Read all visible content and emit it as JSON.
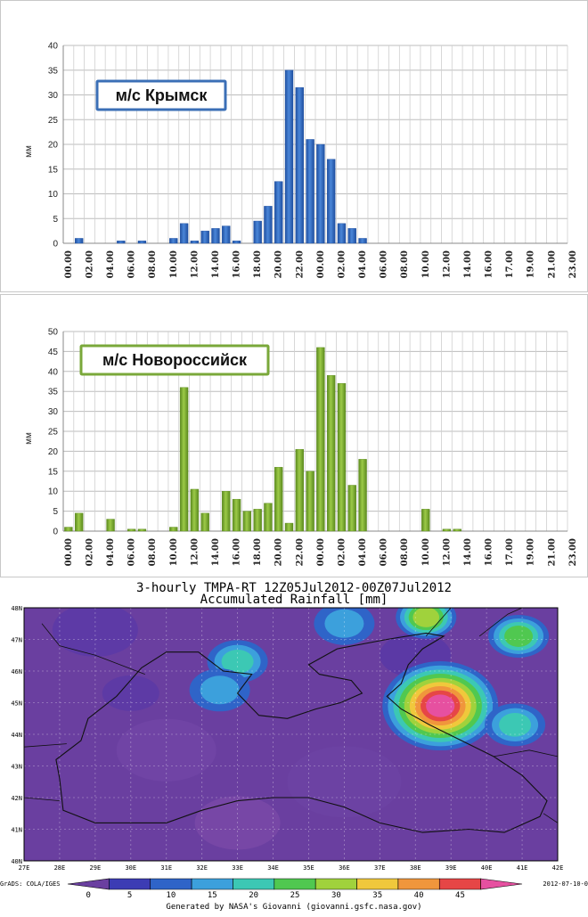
{
  "colors": {
    "blue_bar": "#3a72c8",
    "blue_box_border": "#3b6fb6",
    "green_bar": "#8cbc3a",
    "green_box_border": "#7aa83a",
    "map_bg": "#6a3fa0"
  },
  "chart_data": [
    {
      "type": "bar",
      "title": "м/с Крымск",
      "ylabel": "мм",
      "ylim": [
        0,
        40
      ],
      "yticks": [
        0,
        5,
        10,
        15,
        20,
        25,
        30,
        35,
        40
      ],
      "grid": true,
      "x_tick_labels": [
        "00.00",
        "02.00",
        "04.00",
        "06.00",
        "08.00",
        "10.00",
        "12.00",
        "14.00",
        "16.00",
        "18.00",
        "20.00",
        "22.00",
        "00.00",
        "02.00",
        "04.00",
        "06.00",
        "08.00",
        "10.00",
        "12.00",
        "14.00",
        "16.00",
        "17.00",
        "19.00",
        "21.00",
        "23.00"
      ],
      "values": [
        0,
        1,
        0,
        0,
        0,
        0.5,
        0,
        0.5,
        0,
        0,
        1,
        4,
        0.5,
        2.5,
        3,
        3.5,
        0.5,
        0,
        4.5,
        7.5,
        12.5,
        35,
        31.5,
        21,
        20,
        17,
        4,
        3,
        1,
        0,
        0,
        0,
        0,
        0,
        0,
        0,
        0,
        0,
        0,
        0,
        0,
        0,
        0,
        0,
        0,
        0,
        0,
        0
      ]
    },
    {
      "type": "bar",
      "title": "м/с Новороссийск",
      "ylabel": "мм",
      "ylim": [
        0,
        50
      ],
      "yticks": [
        0,
        5,
        10,
        15,
        20,
        25,
        30,
        35,
        40,
        45,
        50
      ],
      "grid": true,
      "x_tick_labels": [
        "00.00",
        "02.00",
        "04.00",
        "06.00",
        "08.00",
        "10.00",
        "12.00",
        "14.00",
        "16.00",
        "18.00",
        "20.00",
        "22.00",
        "00.00",
        "02.00",
        "04.00",
        "06.00",
        "08.00",
        "10.00",
        "12.00",
        "14.00",
        "16.00",
        "17.00",
        "19.00",
        "21.00",
        "23.00"
      ],
      "values": [
        1,
        4.5,
        0,
        0,
        3,
        0,
        0.5,
        0.5,
        0,
        0,
        1,
        36,
        10.5,
        4.5,
        0,
        10,
        8,
        5,
        5.5,
        7,
        16,
        2,
        20.5,
        15,
        46,
        39,
        37,
        11.5,
        18,
        0,
        0,
        0,
        0,
        0,
        5.5,
        0,
        0.5,
        0.5,
        0,
        0,
        0,
        0,
        0,
        0,
        0,
        0,
        0,
        0
      ]
    },
    {
      "type": "heatmap",
      "title": "3-hourly TMPA-RT 12Z05Jul2012-00Z07Jul2012",
      "subtitle": "Accumulated Rainfall [mm]",
      "x_tick_labels": [
        "27E",
        "28E",
        "29E",
        "30E",
        "31E",
        "32E",
        "33E",
        "34E",
        "35E",
        "36E",
        "37E",
        "38E",
        "39E",
        "40E",
        "41E",
        "42E"
      ],
      "y_tick_labels": [
        "48N",
        "47N",
        "46N",
        "45N",
        "44N",
        "43N",
        "42N",
        "41N",
        "40N"
      ],
      "xlim": [
        27,
        42
      ],
      "ylim": [
        40,
        48
      ],
      "colorbar_labels": [
        "0",
        "5",
        "10",
        "15",
        "20",
        "25",
        "30",
        "35",
        "40",
        "45"
      ],
      "colorbar_colors": [
        "#6a3fa0",
        "#3c3cb4",
        "#2f64c8",
        "#3ca0dc",
        "#3cc8b4",
        "#50c850",
        "#a0d23c",
        "#f0c83c",
        "#f0963c",
        "#e64646",
        "#e650a0"
      ],
      "hotspots": [
        {
          "lon": 38.7,
          "lat": 44.9,
          "value": 45
        },
        {
          "lon": 38.3,
          "lat": 47.7,
          "value": 25
        },
        {
          "lon": 40.9,
          "lat": 47.1,
          "value": 20
        },
        {
          "lon": 40.8,
          "lat": 44.3,
          "value": 15
        },
        {
          "lon": 33.0,
          "lat": 46.3,
          "value": 15
        },
        {
          "lon": 32.5,
          "lat": 45.4,
          "value": 10
        },
        {
          "lon": 36.0,
          "lat": 47.5,
          "value": 10
        }
      ],
      "footer_left": "GrADS: COLA/IGES",
      "footer_center": "Generated by NASA's Giovanni (giovanni.gsfc.nasa.gov)",
      "footer_right": "2012-07-10-0"
    }
  ]
}
